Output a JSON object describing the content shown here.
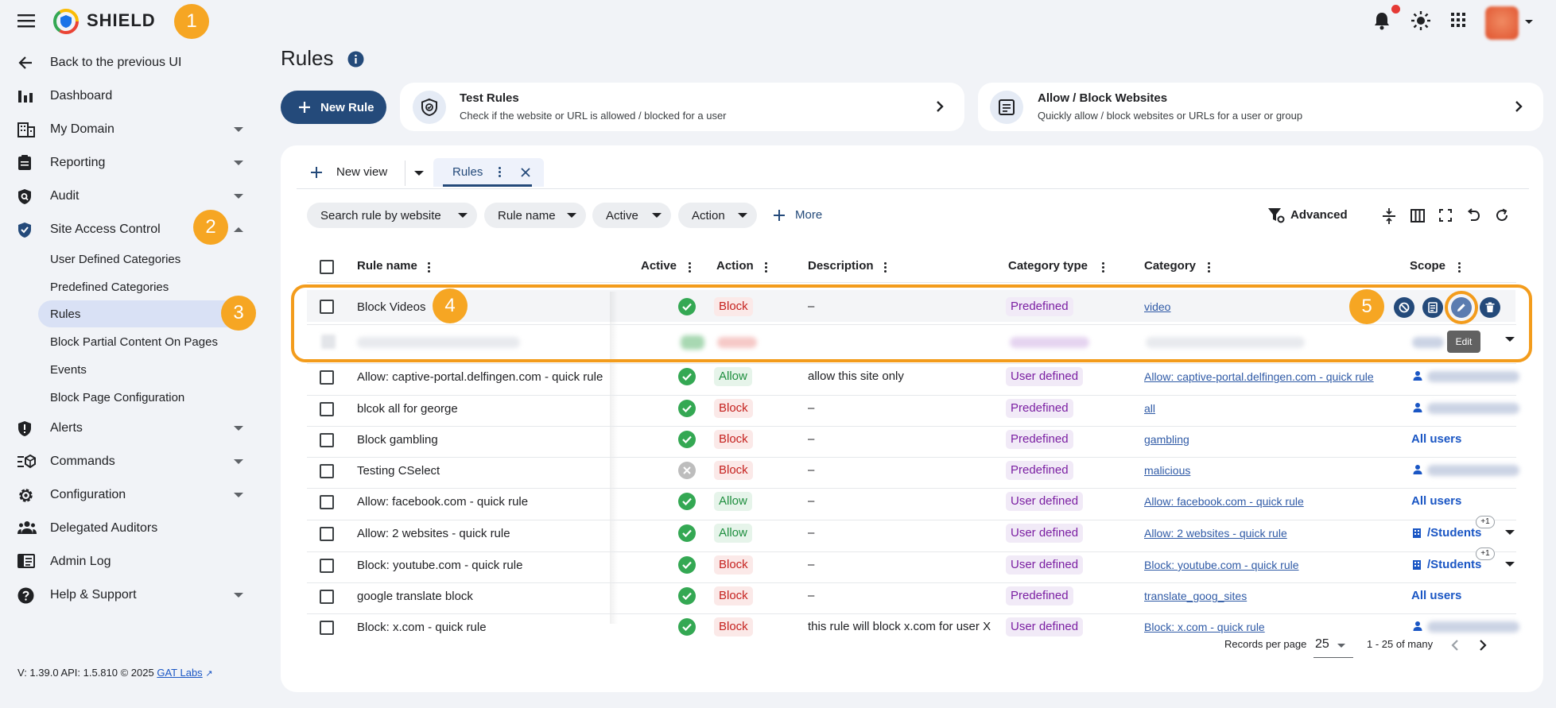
{
  "header": {
    "brand": "SHIELD",
    "step_badges": [
      "1",
      "2",
      "3",
      "4",
      "5"
    ]
  },
  "sidebar": {
    "back": "Back to the previous UI",
    "items": [
      {
        "label": "Dashboard",
        "icon": "bar-chart-icon"
      },
      {
        "label": "My Domain",
        "icon": "building-icon"
      },
      {
        "label": "Reporting",
        "icon": "clipboard-icon"
      },
      {
        "label": "Audit",
        "icon": "shield-search-icon"
      },
      {
        "label": "Site Access Control",
        "icon": "shield-check-icon"
      },
      {
        "label": "Alerts",
        "icon": "shield-alert-icon"
      },
      {
        "label": "Commands",
        "icon": "commands-icon"
      },
      {
        "label": "Configuration",
        "icon": "gear-icon"
      },
      {
        "label": "Delegated Auditors",
        "icon": "people-icon"
      },
      {
        "label": "Admin Log",
        "icon": "log-icon"
      },
      {
        "label": "Help & Support",
        "icon": "help-icon"
      }
    ],
    "sub_items": [
      "User Defined Categories",
      "Predefined Categories",
      "Rules",
      "Block Partial Content On Pages",
      "Events",
      "Block Page Configuration"
    ],
    "footer_version": "V: 1.39.0   API: 1.5.810   © 2025",
    "footer_link": "GAT Labs"
  },
  "main": {
    "title": "Rules",
    "new_rule": "New Rule",
    "cards": [
      {
        "title": "Test Rules",
        "subtitle": "Check if the website or URL is allowed / blocked for a user"
      },
      {
        "title": "Allow / Block Websites",
        "subtitle": "Quickly allow / block websites or URLs for a user or group"
      }
    ],
    "tabs": {
      "new_view": "New view",
      "active_tab": "Rules"
    },
    "filters": [
      "Search rule by website",
      "Rule name",
      "Active",
      "Action"
    ],
    "more": "More",
    "advanced": "Advanced",
    "columns": [
      "Rule name",
      "Active",
      "Action",
      "Description",
      "Category type",
      "Category",
      "Scope"
    ],
    "rows": [
      {
        "name": "Block Videos",
        "active": true,
        "action": "Block",
        "description": "–",
        "type": "Predefined",
        "category": "video",
        "scope": ""
      },
      {
        "name": "Allow: captive-portal.delfingen.com - quick rule",
        "active": true,
        "action": "Allow",
        "description": "allow this site only",
        "type": "User defined",
        "category": "Allow: captive-portal.delfingen.com - quick rule",
        "scope": ""
      },
      {
        "name": "blcok all for george",
        "active": true,
        "action": "Block",
        "description": "–",
        "type": "Predefined",
        "category": "all",
        "scope": ""
      },
      {
        "name": "Block gambling",
        "active": true,
        "action": "Block",
        "description": "–",
        "type": "Predefined",
        "category": "gambling",
        "scope": "All users"
      },
      {
        "name": "Testing CSelect",
        "active": false,
        "action": "Block",
        "description": "–",
        "type": "Predefined",
        "category": "malicious",
        "scope": ""
      },
      {
        "name": "Allow: facebook.com - quick rule",
        "active": true,
        "action": "Allow",
        "description": "–",
        "type": "User defined",
        "category": "Allow: facebook.com - quick rule",
        "scope": "All users"
      },
      {
        "name": "Allow: 2 websites - quick rule",
        "active": true,
        "action": "Allow",
        "description": "–",
        "type": "User defined",
        "category": "Allow: 2 websites - quick rule",
        "scope": "/Students"
      },
      {
        "name": "Block: youtube.com - quick rule",
        "active": true,
        "action": "Block",
        "description": "–",
        "type": "User defined",
        "category": "Block: youtube.com - quick rule",
        "scope": "/Students"
      },
      {
        "name": "google translate block",
        "active": true,
        "action": "Block",
        "description": "–",
        "type": "Predefined",
        "category": "translate_goog_sites",
        "scope": "All users"
      },
      {
        "name": "Block: x.com - quick rule",
        "active": true,
        "action": "Block",
        "description": "this rule will block x.com for user X",
        "type": "User defined",
        "category": "Block: x.com - quick rule",
        "scope": ""
      }
    ],
    "scope_extra": "+1",
    "tooltip": "Edit",
    "pagination": {
      "label": "Records per page",
      "per_page": "25",
      "range": "1 - 25 of many"
    }
  }
}
